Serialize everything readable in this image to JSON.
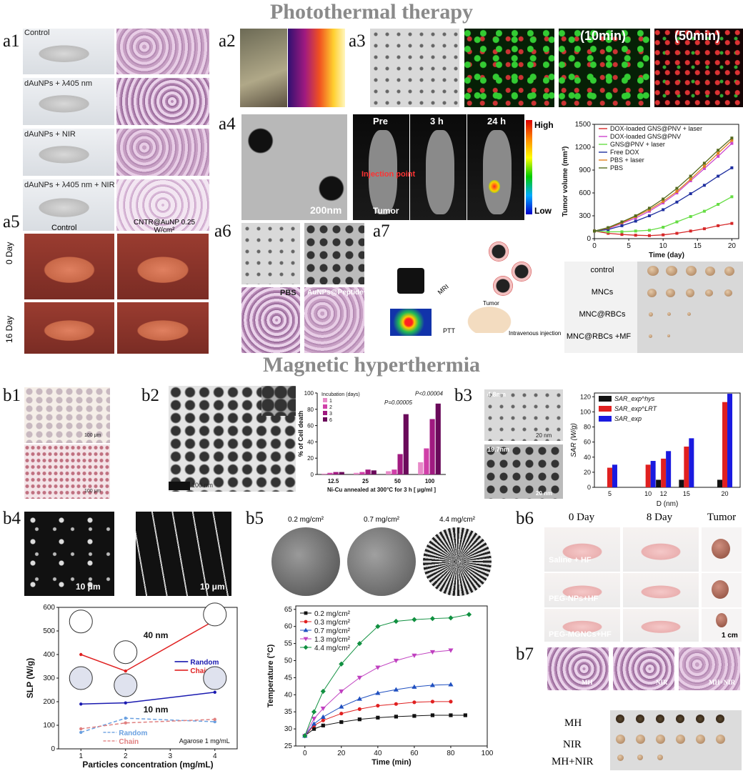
{
  "sections": {
    "photothermal": "Photothermal therapy",
    "magnetic": "Magnetic hyperthermia"
  },
  "panel_labels": [
    "a1",
    "a2",
    "a3",
    "a4",
    "a5",
    "a6",
    "a7",
    "b1",
    "b2",
    "b3",
    "b4",
    "b5",
    "b6",
    "b7"
  ],
  "a1": {
    "rows": [
      "Control",
      "dAuNPs + λ405 nm",
      "dAuNPs + NIR",
      "dAuNPs + λ405 nm + NIR"
    ]
  },
  "a3": {
    "times": [
      "(10min)",
      "(50min)"
    ]
  },
  "a4": {
    "scale": "200nm",
    "times": [
      "Pre",
      "3 h",
      "24 h"
    ],
    "high": "High",
    "low": "Low",
    "injection": "Injection point",
    "tumor": "Tumor"
  },
  "a5": {
    "cols": [
      "Control",
      "CNTR@AuNP 0.25 W/cm²"
    ],
    "rows": [
      "0 Day",
      "16 Day"
    ]
  },
  "a6": {
    "labels": [
      "PBS",
      "AuNPs@Peptide+ L"
    ]
  },
  "a7": {
    "mri": "MRI",
    "ptt": "PTT",
    "tumor": "Tumor",
    "injection": "Intravenous injection",
    "rows": [
      "control",
      "MNCs",
      "MNC@RBCs",
      "MNC@RBCs +MF"
    ]
  },
  "b1": {
    "scale": "100 μm"
  },
  "b2": {
    "scale": "100 nm"
  },
  "b3": {
    "scales": [
      "4.8nm",
      "19.7nm"
    ],
    "scalebar": "20 nm"
  },
  "b4": {
    "scale": "10 μm",
    "size40": "40 nm",
    "size10": "10 nm",
    "agarose": "Agarose 1 mg/mL"
  },
  "b5": {
    "doses": [
      "0.2 mg/cm²",
      "0.7 mg/cm²",
      "4.4 mg/cm²"
    ]
  },
  "b6": {
    "cols": [
      "0 Day",
      "8 Day",
      "Tumor"
    ],
    "rows": [
      "Saline + HF",
      "PEG-NPs+HF",
      "PEG-MGNCs+HF"
    ],
    "scale": "1 cm"
  },
  "b7": {
    "panels": [
      "MH",
      "NIR",
      "MH+NIR"
    ],
    "rows": [
      "MH",
      "NIR",
      "MH+NIR"
    ]
  },
  "chart_data": [
    {
      "id": "a4-tumor-volume",
      "type": "line",
      "xlabel": "Time (day)",
      "ylabel": "Tumor volume (mm³)",
      "xlim": [
        0,
        21
      ],
      "ylim": [
        0,
        1500
      ],
      "xticks": [
        0,
        5,
        10,
        15,
        20
      ],
      "yticks": [
        0,
        300,
        600,
        900,
        1200,
        1500
      ],
      "x": [
        0,
        2,
        4,
        6,
        8,
        10,
        12,
        14,
        16,
        18,
        20
      ],
      "series": [
        {
          "name": "DOX-loaded GNS@PNV + laser",
          "color": "#d62728",
          "values": [
            100,
            70,
            55,
            45,
            40,
            50,
            70,
            100,
            130,
            170,
            200
          ]
        },
        {
          "name": "DOX-loaded GNS@PNV",
          "color": "#cc44cc",
          "values": [
            100,
            130,
            200,
            270,
            360,
            470,
            600,
            760,
            920,
            1080,
            1250
          ]
        },
        {
          "name": "GNS@PNV + laser",
          "color": "#66dd44",
          "values": [
            100,
            90,
            90,
            100,
            110,
            150,
            220,
            290,
            360,
            450,
            550
          ]
        },
        {
          "name": "Free DOX",
          "color": "#1f2fa0",
          "values": [
            100,
            120,
            170,
            230,
            300,
            380,
            480,
            590,
            700,
            820,
            930
          ]
        },
        {
          "name": "PBS + laser",
          "color": "#e08020",
          "values": [
            100,
            140,
            210,
            290,
            380,
            490,
            620,
            780,
            950,
            1120,
            1290
          ]
        },
        {
          "name": "PBS",
          "color": "#556b1f",
          "values": [
            100,
            145,
            220,
            300,
            400,
            520,
            660,
            820,
            990,
            1160,
            1320
          ]
        }
      ]
    },
    {
      "id": "b2-cell-death",
      "type": "bar",
      "xlabel": "Ni-Cu annealed at 300°C for 3 h [ μg/ml ]",
      "ylabel": "% of Cell death",
      "ylim": [
        0,
        100
      ],
      "yticks": [
        0,
        20,
        40,
        60,
        80,
        100
      ],
      "categories": [
        "12.5",
        "25",
        "50",
        "100"
      ],
      "legend_title": "Incubation (days)",
      "series": [
        {
          "name": "1",
          "color": "#e88ac8",
          "values": [
            1,
            2,
            4,
            15
          ]
        },
        {
          "name": "2",
          "color": "#d040a8",
          "values": [
            2,
            3,
            6,
            32
          ]
        },
        {
          "name": "3",
          "color": "#a01a80",
          "values": [
            3,
            6,
            25,
            68
          ]
        },
        {
          "name": "6",
          "color": "#6a0a5a",
          "values": [
            3,
            5,
            74,
            87
          ]
        }
      ],
      "annotations": [
        "P=0.00005",
        "P<0.00004"
      ]
    },
    {
      "id": "b3-sar",
      "type": "bar",
      "xlabel": "D (nm)",
      "ylabel": "SAR (W/g)",
      "ylim": [
        0,
        125
      ],
      "yticks": [
        0,
        20,
        40,
        60,
        80,
        100,
        120
      ],
      "categories": [
        "5",
        "10",
        "12",
        "15",
        "20"
      ],
      "series": [
        {
          "name": "SAR_exp^hys",
          "color": "#111111",
          "values": [
            0,
            0,
            10,
            10,
            10
          ]
        },
        {
          "name": "SAR_exp^LRT",
          "color": "#e02020",
          "values": [
            26,
            30,
            38,
            54,
            113
          ]
        },
        {
          "name": "SAR_exp",
          "color": "#1a1ae0",
          "values": [
            30,
            35,
            48,
            65,
            124
          ]
        }
      ]
    },
    {
      "id": "b4-slp",
      "type": "line",
      "xlabel": "Particles concentration (mg/mL)",
      "ylabel": "SLP (W/g)",
      "xlim": [
        0.5,
        4.5
      ],
      "ylim": [
        0,
        600
      ],
      "xticks": [
        1,
        2,
        3,
        4
      ],
      "yticks": [
        0,
        100,
        200,
        300,
        400,
        500,
        600
      ],
      "series": [
        {
          "name": "Chain",
          "group": "40 nm",
          "color": "#e02020",
          "dash": false,
          "x": [
            1,
            2,
            4
          ],
          "values": [
            400,
            330,
            545
          ]
        },
        {
          "name": "Random",
          "group": "40 nm",
          "color": "#1a1ab0",
          "dash": false,
          "x": [
            1,
            2,
            4
          ],
          "values": [
            190,
            195,
            240
          ]
        },
        {
          "name": "Random",
          "group": "10 nm",
          "color": "#6aa0e0",
          "dash": true,
          "x": [
            1,
            2,
            4
          ],
          "values": [
            70,
            130,
            115
          ]
        },
        {
          "name": "Chain",
          "group": "10 nm",
          "color": "#e08080",
          "dash": true,
          "x": [
            1,
            2,
            4
          ],
          "values": [
            85,
            110,
            125
          ]
        }
      ]
    },
    {
      "id": "b5-temperature",
      "type": "line",
      "xlabel": "Time (min)",
      "ylabel": "Temperature (°C)",
      "xlim": [
        -5,
        100
      ],
      "ylim": [
        25,
        66
      ],
      "xticks": [
        0,
        20,
        40,
        60,
        80,
        100
      ],
      "yticks": [
        25,
        30,
        35,
        40,
        45,
        50,
        55,
        60,
        65
      ],
      "series": [
        {
          "name": "0.2 mg/cm²",
          "color": "#111111",
          "marker": "square",
          "x": [
            0,
            5,
            10,
            20,
            30,
            40,
            50,
            60,
            70,
            80,
            88
          ],
          "values": [
            28,
            30,
            31,
            32,
            32.8,
            33.3,
            33.6,
            33.8,
            34,
            34,
            34
          ]
        },
        {
          "name": "0.3 mg/cm²",
          "color": "#e02020",
          "marker": "circle",
          "x": [
            0,
            5,
            10,
            20,
            30,
            40,
            50,
            60,
            70,
            80
          ],
          "values": [
            28,
            31,
            32.5,
            34.5,
            35.8,
            36.8,
            37.3,
            37.8,
            38,
            38
          ]
        },
        {
          "name": "0.7 mg/cm²",
          "color": "#2050c0",
          "marker": "triangle",
          "x": [
            0,
            5,
            10,
            20,
            30,
            40,
            50,
            60,
            70,
            80
          ],
          "values": [
            28,
            31.5,
            33.5,
            36.5,
            38.8,
            40.5,
            41.5,
            42.3,
            42.8,
            43
          ]
        },
        {
          "name": "1.3 mg/cm²",
          "color": "#c040c0",
          "marker": "triangle-down",
          "x": [
            0,
            5,
            10,
            20,
            30,
            40,
            50,
            60,
            70,
            80
          ],
          "values": [
            28,
            33,
            36,
            41,
            45,
            48,
            50,
            51.5,
            52.5,
            53
          ]
        },
        {
          "name": "4.4 mg/cm²",
          "color": "#109040",
          "marker": "diamond",
          "x": [
            0,
            5,
            10,
            20,
            30,
            40,
            50,
            60,
            70,
            80,
            90
          ],
          "values": [
            28,
            35,
            41,
            49,
            55,
            60,
            61.5,
            62,
            62.3,
            62.5,
            63.5
          ]
        }
      ]
    }
  ]
}
